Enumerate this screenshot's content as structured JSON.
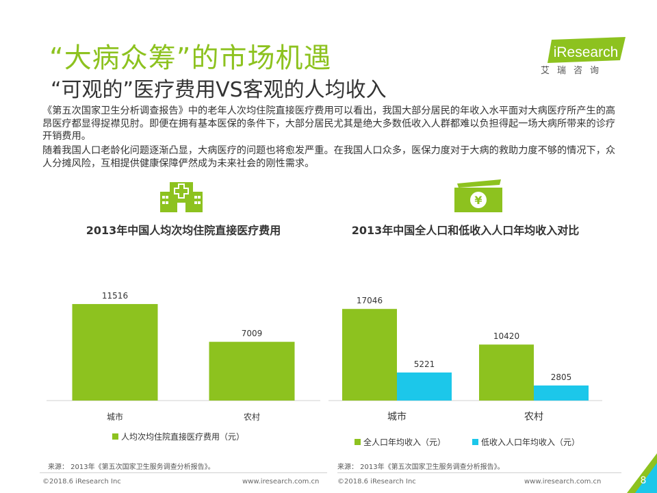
{
  "header": {
    "title": "“大病众筹”的市场机遇",
    "subtitle": "“可观的”医疗费用VS客观的人均收入"
  },
  "logo": {
    "brand": "iResearch",
    "cn": "艾瑞咨询"
  },
  "body": {
    "para_1": "《第五次国家卫生分析调查报告》中的老年人次均住院直接医疗费用可以看出，我国大部分居民的年收入水平面对大病医疗所产生的高昂医疗都显得捉襟见肘。即便在拥有基本医保的条件下，大部分居民尤其是绝大多数低收入人群都难以负担得起一场大病所带来的诊疗开销费用。",
    "para_2": "随着我国人口老龄化问题逐渐凸显，大病医疗的问题也将愈发严重。在我国人口众多，医保力度对于大病的救助力度不够的情况下，众人分摊风险，互相提供健康保障俨然成为未来社会的刚性需求。"
  },
  "icons": {
    "left": "hospital-icon",
    "right": "money-yen-icon"
  },
  "chart_data": [
    {
      "type": "bar",
      "title": "2013年中国人均次均住院直接医疗费用",
      "categories": [
        "城市",
        "农村"
      ],
      "series": [
        {
          "name": "人均次均住院直接医疗费用（元）",
          "values": [
            11516,
            7009
          ],
          "color": "#8dc21f"
        }
      ],
      "ylim": [
        0,
        12500
      ],
      "legend": "bottom",
      "grid": false
    },
    {
      "type": "bar",
      "title": "2013年中国全人口和低收入人口年均收入对比",
      "categories": [
        "城市",
        "农村"
      ],
      "series": [
        {
          "name": "全人口年均收入（元）",
          "values": [
            17046,
            10420
          ],
          "color": "#8dc21f"
        },
        {
          "name": "低收入人口年均收入（元）",
          "values": [
            5221,
            2805
          ],
          "color": "#1cc7ea"
        }
      ],
      "ylim": [
        0,
        20000
      ],
      "legend": "bottom",
      "grid": false
    }
  ],
  "sources": {
    "left": "来源：  2013年《第五次国家卫生服务调查分析报告》。",
    "right": "来源：  2013年《第五次国家卫生服务调查分析报告》。"
  },
  "footer": {
    "copyright": "©2018.6 iResearch Inc",
    "url": "www.iresearch.com.cn",
    "page": "8"
  }
}
